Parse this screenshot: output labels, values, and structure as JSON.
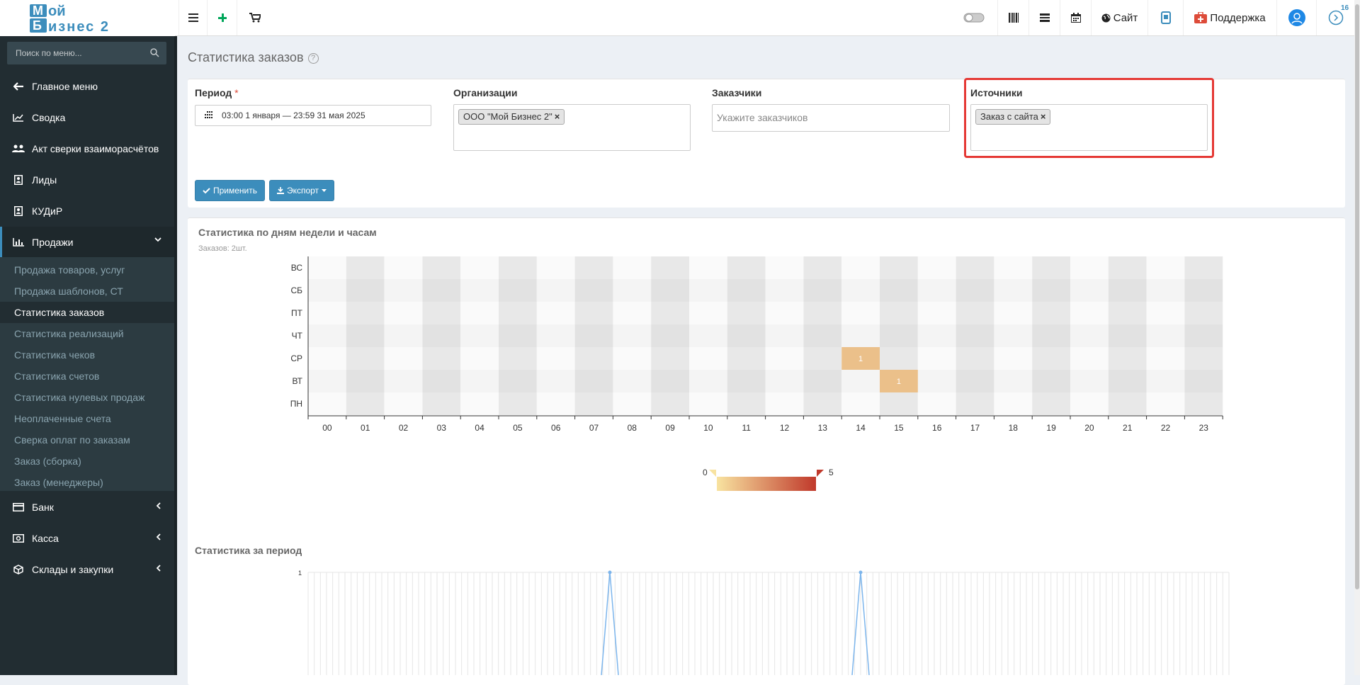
{
  "app": {
    "logo_text": "Мой Бизнес 2",
    "colors": {
      "accent": "#3c8dbc",
      "sidebar_bg": "#222d32",
      "highlight": "#e53935"
    }
  },
  "topbar": {
    "site_label": "Сайт",
    "support_label": "Поддержка",
    "notifications_count": "16",
    "icons": [
      "menu-icon",
      "plus-icon",
      "cart-icon",
      "toggle-icon",
      "barcode-icon",
      "list-icon",
      "calendar-icon",
      "globe-icon",
      "phone-icon",
      "first-aid-icon",
      "user-icon",
      "chevron-right-circle-icon"
    ]
  },
  "sidebar": {
    "search_placeholder": "Поиск по меню...",
    "items": [
      {
        "label": "Главное меню",
        "icon": "arrow-left-icon"
      },
      {
        "label": "Сводка",
        "icon": "line-chart-icon"
      },
      {
        "label": "Акт сверки взаиморасчётов",
        "icon": "users-icon"
      },
      {
        "label": "Лиды",
        "icon": "contact-icon"
      },
      {
        "label": "КУДиР",
        "icon": "contact-icon"
      },
      {
        "label": "Продажи",
        "icon": "bar-chart-icon"
      },
      {
        "label": "Банк",
        "icon": "credit-card-icon"
      },
      {
        "label": "Касса",
        "icon": "money-icon"
      },
      {
        "label": "Склады и закупки",
        "icon": "cube-icon"
      }
    ],
    "submenu": [
      "Продажа товаров, услуг",
      "Продажа шаблонов, СТ",
      "Статистика заказов",
      "Статистика реализаций",
      "Статистика чеков",
      "Статистика счетов",
      "Статистика нулевых продаж",
      "Неоплаченные счета",
      "Сверка оплат по заказам",
      "Заказ (сборка)",
      "Заказ (менеджеры)"
    ],
    "current_submenu": "Статистика заказов"
  },
  "page": {
    "title": "Статистика заказов",
    "help": "?"
  },
  "filters": {
    "period_label": "Период",
    "required_mark": "*",
    "period_value": "03:00 1 января — 23:59 31 мая 2025",
    "org_label": "Организации",
    "org_tag": "ООО \"Мой Бизнес 2\"",
    "customers_label": "Заказчики",
    "customers_placeholder": "Укажите заказчиков",
    "sources_label": "Источники",
    "sources_tag": "Заказ с сайта",
    "remove_mark": "×",
    "apply_label": "Применить",
    "export_label": "Экспорт"
  },
  "heatmap_section": {
    "title": "Статистика по дням недели и часам",
    "subtitle": "Заказов: 2шт."
  },
  "period_section": {
    "title": "Статистика за период"
  },
  "chart_data": [
    {
      "type": "heatmap",
      "y_categories": [
        "ВС",
        "СБ",
        "ПТ",
        "ЧТ",
        "СР",
        "ВТ",
        "ПН"
      ],
      "x_categories": [
        "00",
        "01",
        "02",
        "03",
        "04",
        "05",
        "06",
        "07",
        "08",
        "09",
        "10",
        "11",
        "12",
        "13",
        "14",
        "15",
        "16",
        "17",
        "18",
        "19",
        "20",
        "21",
        "22",
        "23"
      ],
      "cells": [
        {
          "day": "СР",
          "hour": "14",
          "value": 1
        },
        {
          "day": "ВТ",
          "hour": "15",
          "value": 1
        }
      ],
      "color_scale": {
        "min": 0,
        "max": 5,
        "min_color": "#f8e3a0",
        "max_color": "#c0392b"
      }
    },
    {
      "type": "line",
      "y_ticks": [
        "1"
      ],
      "ylim": [
        0,
        1
      ],
      "peaks": 2,
      "grid": true
    }
  ]
}
